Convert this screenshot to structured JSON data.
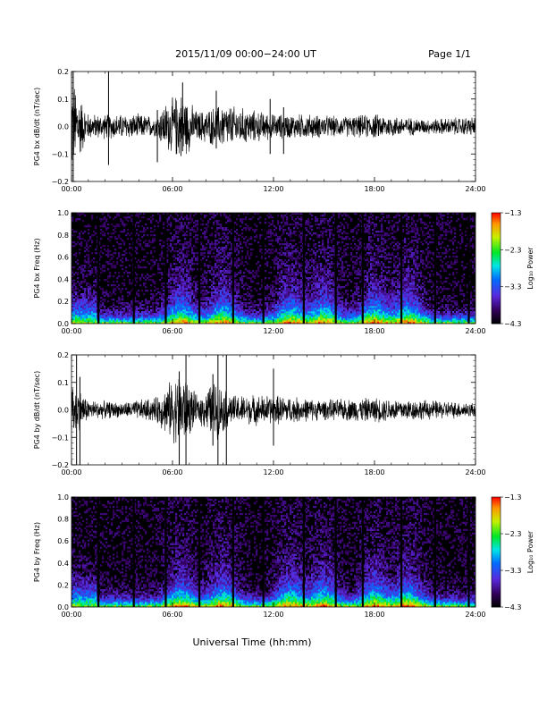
{
  "header": {
    "title": "2015/11/09  00:00−24:00 UT",
    "page": "Page 1/1"
  },
  "footer": {
    "xlabel": "Universal Time (hh:mm)"
  },
  "colorbar": {
    "label": "Log₁₀ Power",
    "tick_labels": [
      "−1.3",
      "−2.3",
      "−3.3",
      "−4.3"
    ],
    "range": [
      -4.3,
      -1.3
    ]
  },
  "chart_data": [
    {
      "type": "line",
      "ylabel": "PG4 bx dB/dt (nT/sec)",
      "x_tick_labels": [
        "00:00",
        "06:00",
        "12:00",
        "18:00",
        "24:00"
      ],
      "y_tick_labels": [
        "0.2",
        "0.1",
        "0.0",
        "−0.1",
        "−0.2"
      ],
      "xlim_hours": [
        0,
        24
      ],
      "ylim": [
        -0.2,
        0.2
      ],
      "envelope": [
        {
          "t": 0.0,
          "amp": 0.2
        },
        {
          "t": 1.0,
          "amp": 0.05
        },
        {
          "t": 2.0,
          "amp": 0.05
        },
        {
          "t": 3.0,
          "amp": 0.05
        },
        {
          "t": 4.0,
          "amp": 0.05
        },
        {
          "t": 5.0,
          "amp": 0.04
        },
        {
          "t": 5.5,
          "amp": 0.09
        },
        {
          "t": 6.5,
          "amp": 0.14
        },
        {
          "t": 7.5,
          "amp": 0.06
        },
        {
          "t": 9.0,
          "amp": 0.09
        },
        {
          "t": 12.0,
          "amp": 0.05
        },
        {
          "t": 14.0,
          "amp": 0.05
        },
        {
          "t": 16.0,
          "amp": 0.04
        },
        {
          "t": 18.0,
          "amp": 0.05
        },
        {
          "t": 21.0,
          "amp": 0.03
        },
        {
          "t": 24.0,
          "amp": 0.04
        }
      ],
      "spikes": [
        {
          "t": 0.1,
          "ymin": -0.2,
          "ymax": 0.2
        },
        {
          "t": 2.2,
          "ymin": -0.14,
          "ymax": 0.2
        },
        {
          "t": 5.1,
          "ymin": -0.13,
          "ymax": 0.06
        },
        {
          "t": 6.6,
          "ymin": -0.09,
          "ymax": 0.16
        },
        {
          "t": 8.6,
          "ymin": -0.08,
          "ymax": 0.13
        },
        {
          "t": 11.8,
          "ymin": -0.1,
          "ymax": 0.1
        },
        {
          "t": 12.6,
          "ymin": -0.1,
          "ymax": 0.07
        }
      ]
    },
    {
      "type": "heatmap",
      "ylabel": "PG4 bx Freq (Hz)",
      "x_tick_labels": [
        "00:00",
        "06:00",
        "12:00",
        "18:00",
        "24:00"
      ],
      "y_tick_labels": [
        "1.0",
        "0.8",
        "0.6",
        "0.4",
        "0.2",
        "0.0"
      ],
      "xlim_hours": [
        0,
        24
      ],
      "ylim": [
        0,
        1.0
      ],
      "gap_lines_hours": [
        1.6,
        3.7,
        5.6,
        7.6,
        9.6,
        11.4,
        13.8,
        15.7,
        17.3,
        19.6,
        21.6,
        23.6
      ],
      "active_hours": [
        6.5,
        9.0,
        13.0,
        15.0,
        18.0,
        20.0
      ]
    },
    {
      "type": "line",
      "ylabel": "PG4 by dB/dt (nT/sec)",
      "x_tick_labels": [
        "00:00",
        "06:00",
        "12:00",
        "18:00",
        "24:00"
      ],
      "y_tick_labels": [
        "0.2",
        "0.1",
        "0.0",
        "−0.1",
        "−0.2"
      ],
      "xlim_hours": [
        0,
        24
      ],
      "ylim": [
        -0.2,
        0.2
      ],
      "envelope": [
        {
          "t": 0.0,
          "amp": 0.12
        },
        {
          "t": 1.0,
          "amp": 0.04
        },
        {
          "t": 3.0,
          "amp": 0.03
        },
        {
          "t": 5.0,
          "amp": 0.05
        },
        {
          "t": 6.5,
          "amp": 0.16
        },
        {
          "t": 7.5,
          "amp": 0.05
        },
        {
          "t": 8.5,
          "amp": 0.12
        },
        {
          "t": 9.5,
          "amp": 0.06
        },
        {
          "t": 12.0,
          "amp": 0.06
        },
        {
          "t": 15.0,
          "amp": 0.04
        },
        {
          "t": 18.0,
          "amp": 0.05
        },
        {
          "t": 21.0,
          "amp": 0.04
        },
        {
          "t": 24.0,
          "amp": 0.03
        }
      ],
      "spikes": [
        {
          "t": 0.3,
          "ymin": -0.2,
          "ymax": 0.2
        },
        {
          "t": 0.5,
          "ymin": -0.2,
          "ymax": 0.12
        },
        {
          "t": 6.8,
          "ymin": -0.2,
          "ymax": 0.2
        },
        {
          "t": 6.4,
          "ymin": -0.2,
          "ymax": 0.14
        },
        {
          "t": 8.4,
          "ymin": -0.13,
          "ymax": 0.13
        },
        {
          "t": 8.7,
          "ymin": -0.2,
          "ymax": 0.2
        },
        {
          "t": 9.2,
          "ymin": -0.2,
          "ymax": 0.2
        },
        {
          "t": 12.0,
          "ymin": -0.13,
          "ymax": 0.15
        }
      ]
    },
    {
      "type": "heatmap",
      "ylabel": "PG4 by Freq (Hz)",
      "x_tick_labels": [
        "00:00",
        "06:00",
        "12:00",
        "18:00",
        "24:00"
      ],
      "y_tick_labels": [
        "1.0",
        "0.8",
        "0.6",
        "0.4",
        "0.2",
        "0.0"
      ],
      "xlim_hours": [
        0,
        24
      ],
      "ylim": [
        0,
        1.0
      ],
      "gap_lines_hours": [
        1.6,
        3.7,
        5.6,
        7.6,
        9.6,
        11.4,
        13.8,
        15.7,
        17.3,
        19.6,
        21.6,
        23.6
      ],
      "active_hours": [
        6.5,
        9.0,
        13.0,
        15.0,
        18.0,
        20.0
      ]
    }
  ]
}
